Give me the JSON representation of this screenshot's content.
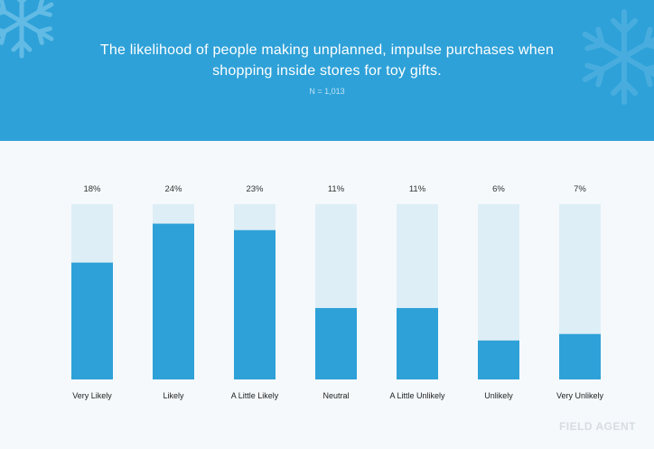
{
  "header": {
    "title": "The likelihood of people making unplanned, impulse purchases when shopping inside stores for toy gifts.",
    "subtitle": "N = 1,013"
  },
  "watermark": "FIELD AGENT",
  "colors": {
    "header_bg": "#2ea1d8",
    "bar_fill": "#2ea1d8",
    "bar_track": "#deeef6",
    "page_bg": "#f5f9fc"
  },
  "chart_data": {
    "type": "bar",
    "categories": [
      "Very Likely",
      "Likely",
      "A Little Likely",
      "Neutral",
      "A Little Unlikely",
      "Unlikely",
      "Very Unlikely"
    ],
    "values": [
      18,
      24,
      23,
      11,
      11,
      6,
      7
    ],
    "value_labels": [
      "18%",
      "24%",
      "23%",
      "11%",
      "11%",
      "6%",
      "7%"
    ],
    "ylim": [
      0,
      27
    ],
    "grid": false,
    "legend": "none"
  }
}
